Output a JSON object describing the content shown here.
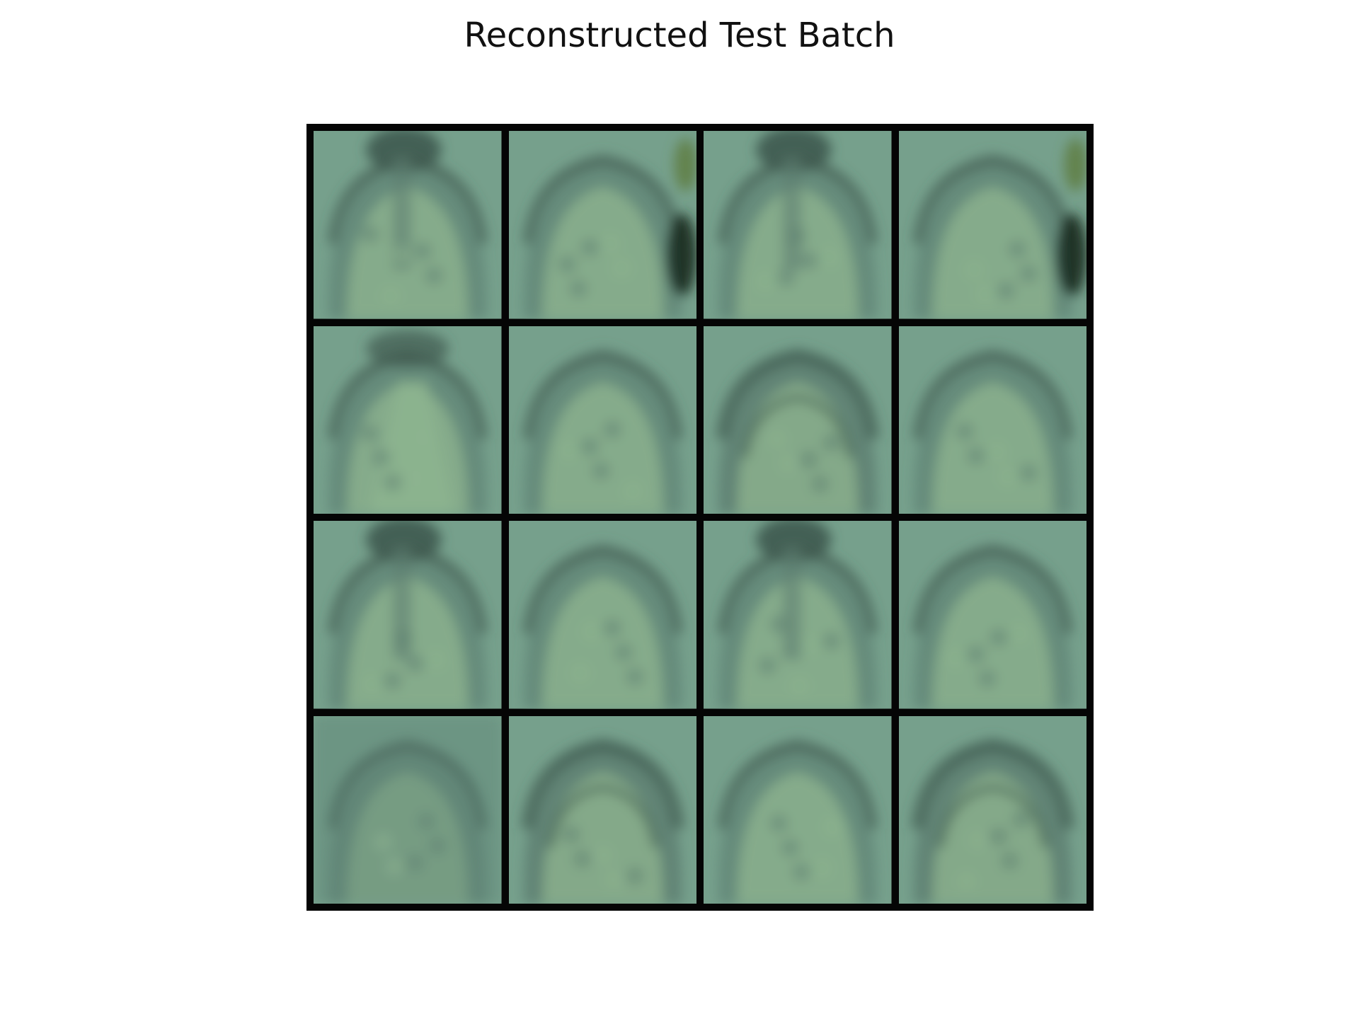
{
  "title": "Reconstructed Test Batch",
  "grid": {
    "rows": 4,
    "cols": 4
  },
  "palette": {
    "bg": "#76a08c",
    "dark": "#3f5a4f",
    "mid": "#5d7f72",
    "light": "#8db48f",
    "shadow": "#1c2e22",
    "leaf": "#5f7f45"
  },
  "tiles": [
    {
      "name": "reconstruction-r1c1",
      "variant": "dark-top"
    },
    {
      "name": "reconstruction-r1c2",
      "variant": "side-shadow"
    },
    {
      "name": "reconstruction-r1c3",
      "variant": "dark-top"
    },
    {
      "name": "reconstruction-r1c4",
      "variant": "side-shadow"
    },
    {
      "name": "reconstruction-r2c1",
      "variant": "light-center"
    },
    {
      "name": "reconstruction-r2c2",
      "variant": "arc"
    },
    {
      "name": "reconstruction-r2c3",
      "variant": "arc-strong"
    },
    {
      "name": "reconstruction-r2c4",
      "variant": "arc"
    },
    {
      "name": "reconstruction-r3c1",
      "variant": "dark-top"
    },
    {
      "name": "reconstruction-r3c2",
      "variant": "arc"
    },
    {
      "name": "reconstruction-r3c3",
      "variant": "dark-top"
    },
    {
      "name": "reconstruction-r3c4",
      "variant": "arc"
    },
    {
      "name": "reconstruction-r4c1",
      "variant": "muted"
    },
    {
      "name": "reconstruction-r4c2",
      "variant": "arc-strong"
    },
    {
      "name": "reconstruction-r4c3",
      "variant": "arc"
    },
    {
      "name": "reconstruction-r4c4",
      "variant": "arc-strong"
    }
  ]
}
